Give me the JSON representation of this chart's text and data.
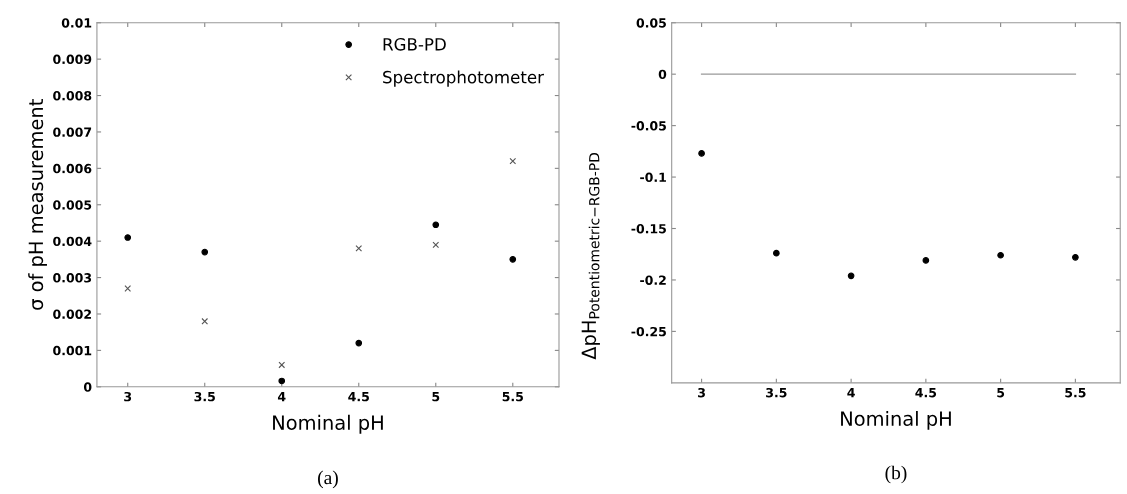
{
  "chart_data": [
    {
      "type": "scatter",
      "xlabel": "Nominal pH",
      "ylabel": "σ of pH measurement",
      "annotations": [
        "(a)"
      ],
      "x": [
        3,
        3.5,
        4,
        4.5,
        5,
        5.5
      ],
      "series": [
        {
          "name": "RGB-PD",
          "color": "#000000",
          "marker": "circle",
          "values": [
            0.0041,
            0.0037,
            0.00016,
            0.0012,
            0.00445,
            0.0035
          ]
        },
        {
          "name": "Spectrophotometer",
          "color": "#555555",
          "marker": "cross",
          "values": [
            0.0027,
            0.0018,
            0.0006,
            0.0038,
            0.0039,
            0.0062
          ]
        }
      ],
      "xlim": [
        2.8,
        5.8
      ],
      "xticks": [
        3,
        3.5,
        4,
        4.5,
        5,
        5.5
      ],
      "ylim": [
        0,
        0.01
      ],
      "yticks": [
        0,
        0.001,
        0.002,
        0.003,
        0.004,
        0.005,
        0.006,
        0.007,
        0.008,
        0.009,
        0.01
      ],
      "grid": false,
      "legend": "top right"
    },
    {
      "type": "scatter",
      "xlabel": "Nominal pH",
      "ylabel": "ΔpH$_{Potentiometric−RGB-PD}$",
      "annotations": [
        "(b)"
      ],
      "x": [
        3,
        3.5,
        4,
        4.5,
        5,
        5.5
      ],
      "series": [
        {
          "color": "#000000",
          "marker": "circle",
          "values": [
            -0.077,
            -0.174,
            -0.196,
            -0.181,
            -0.176,
            -0.178
          ]
        },
        {
          "type": "line",
          "color": "#999999",
          "marker": "none",
          "x": [
            3,
            5.5
          ],
          "values": [
            0,
            0
          ]
        }
      ],
      "xlim": [
        2.8,
        5.8
      ],
      "xticks": [
        3,
        3.5,
        4,
        4.5,
        5,
        5.5
      ],
      "ylim": [
        -0.3,
        0.05
      ],
      "yticks": [
        -0.25,
        -0.2,
        -0.15,
        -0.1,
        -0.05,
        0,
        0.05
      ],
      "grid": false,
      "legend": false
    }
  ]
}
